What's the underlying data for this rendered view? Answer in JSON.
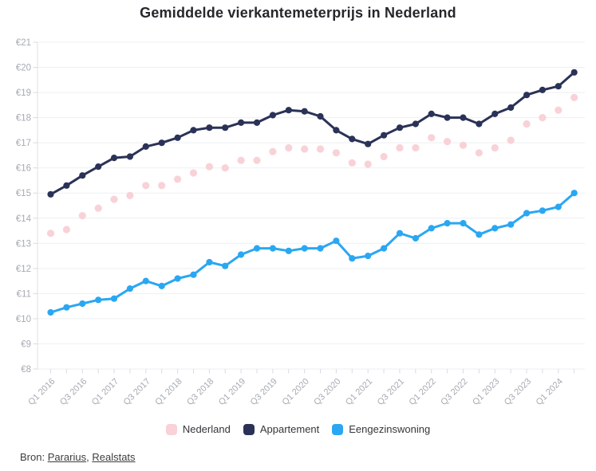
{
  "chart_data": {
    "type": "line",
    "title": "Gemiddelde vierkantemeterprijs in Nederland",
    "xlabel": "",
    "ylabel": "",
    "ylim": [
      8,
      21
    ],
    "grid": true,
    "legend_position": "bottom",
    "y_prefix": "€",
    "y_ticks": [
      8,
      9,
      10,
      11,
      12,
      13,
      14,
      15,
      16,
      17,
      18,
      19,
      20,
      21
    ],
    "y_tick_labels": [
      "€8",
      "€9",
      "€10",
      "€11",
      "€12",
      "€13",
      "€14",
      "€15",
      "€16",
      "€17",
      "€18",
      "€19",
      "€20",
      "€21"
    ],
    "categories": [
      "Q1 2016",
      "Q2 2016",
      "Q3 2016",
      "Q4 2016",
      "Q1 2017",
      "Q2 2017",
      "Q3 2017",
      "Q4 2017",
      "Q1 2018",
      "Q2 2018",
      "Q3 2018",
      "Q4 2018",
      "Q1 2019",
      "Q2 2019",
      "Q3 2019",
      "Q4 2019",
      "Q1 2020",
      "Q2 2020",
      "Q3 2020",
      "Q4 2020",
      "Q1 2021",
      "Q2 2021",
      "Q3 2021",
      "Q4 2021",
      "Q1 2022",
      "Q2 2022",
      "Q3 2022",
      "Q4 2022",
      "Q1 2023",
      "Q2 2023",
      "Q3 2023",
      "Q4 2023",
      "Q1 2024",
      "Q2 2024"
    ],
    "x_tick_labels": [
      "Q1 2016",
      "Q3 2016",
      "Q1 2017",
      "Q3 2017",
      "Q1 2018",
      "Q3 2018",
      "Q1 2019",
      "Q3 2019",
      "Q1 2020",
      "Q3 2020",
      "Q1 2021",
      "Q3 2021",
      "Q1 2022",
      "Q3 2022",
      "Q1 2023",
      "Q3 2023",
      "Q1 2024"
    ],
    "x_tick_step": 2,
    "series": [
      {
        "name": "Nederland",
        "style": "scatter",
        "color": "#f8d2d8",
        "values": [
          13.4,
          13.55,
          14.1,
          14.4,
          14.75,
          14.9,
          15.3,
          15.3,
          15.55,
          15.8,
          16.05,
          16.0,
          16.3,
          16.3,
          16.65,
          16.8,
          16.75,
          16.75,
          16.6,
          16.2,
          16.15,
          16.45,
          16.8,
          16.8,
          17.2,
          17.05,
          16.9,
          16.6,
          16.8,
          17.1,
          17.75,
          18.0,
          18.3,
          18.8
        ]
      },
      {
        "name": "Appartement",
        "style": "line",
        "color": "#2b3257",
        "values": [
          14.95,
          15.3,
          15.7,
          16.05,
          16.4,
          16.45,
          16.85,
          17.0,
          17.2,
          17.5,
          17.6,
          17.6,
          17.8,
          17.8,
          18.1,
          18.3,
          18.25,
          18.05,
          17.5,
          17.15,
          16.95,
          17.3,
          17.6,
          17.75,
          18.15,
          18.0,
          18.0,
          17.75,
          18.15,
          18.4,
          18.9,
          19.1,
          19.25,
          19.8
        ]
      },
      {
        "name": "Eengezinswoning",
        "style": "line",
        "color": "#2aa7f2",
        "values": [
          10.25,
          10.45,
          10.6,
          10.75,
          10.8,
          11.2,
          11.5,
          11.3,
          11.6,
          11.75,
          12.25,
          12.1,
          12.55,
          12.8,
          12.8,
          12.7,
          12.8,
          12.8,
          13.1,
          12.4,
          12.5,
          12.8,
          13.4,
          13.2,
          13.6,
          13.8,
          13.8,
          13.35,
          13.6,
          13.75,
          14.2,
          14.3,
          14.45,
          15.0
        ]
      }
    ],
    "colors": {
      "grid": "#edeff3",
      "axis": "#dde0e6",
      "tick": "#d8dbe1",
      "axis_text": "#a6aab2",
      "title_text": "#26262c"
    }
  },
  "source": {
    "label": "Bron: ",
    "links": [
      "Pararius",
      "Realstats"
    ],
    "separator": ", "
  }
}
